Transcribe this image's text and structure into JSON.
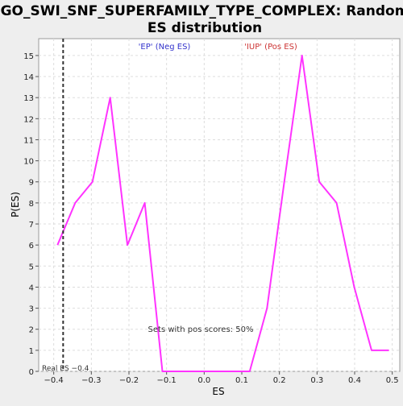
{
  "chart_data": {
    "type": "line",
    "title_lines": [
      "GO_SWI_SNF_SUPERFAMILY_TYPE_COMPLEX: Random",
      "ES distribution"
    ],
    "xlabel": "ES",
    "ylabel": "P(ES)",
    "xlim": [
      -0.44,
      0.52
    ],
    "ylim": [
      0,
      15.8
    ],
    "x_ticks": [
      -0.4,
      -0.3,
      -0.2,
      -0.1,
      0.0,
      0.1,
      0.2,
      0.3,
      0.4,
      0.5
    ],
    "x_tick_labels": [
      "−0.4",
      "−0.3",
      "−0.2",
      "−0.1",
      "0.0",
      "0.1",
      "0.2",
      "0.3",
      "0.4",
      "0.5"
    ],
    "y_ticks": [
      0,
      1,
      2,
      3,
      4,
      5,
      6,
      7,
      8,
      9,
      10,
      11,
      12,
      13,
      14,
      15
    ],
    "y_tick_labels": [
      "0",
      "1",
      "2",
      "3",
      "4",
      "5",
      "6",
      "7",
      "8",
      "9",
      "10",
      "11",
      "12",
      "13",
      "14",
      "15"
    ],
    "grid": true,
    "series": [
      {
        "color": "#ff33ff",
        "x": [
          -0.39,
          -0.343,
          -0.297,
          -0.25,
          -0.204,
          -0.158,
          -0.111,
          -0.065,
          -0.018,
          0.028,
          0.074,
          0.121,
          0.167,
          0.213,
          0.26,
          0.306,
          0.352,
          0.399,
          0.445,
          0.491
        ],
        "y": [
          6,
          8,
          9,
          13,
          6,
          8,
          0,
          0,
          0,
          0,
          0,
          0,
          3,
          9,
          15,
          9,
          8,
          4,
          1,
          1
        ]
      }
    ],
    "real_es_line": {
      "x": -0.375,
      "color": "#333333",
      "style": "dashed"
    },
    "annotations": {
      "neg_label": "'EP' (Neg ES)",
      "neg_color": "#3333cc",
      "pos_label": "'IUP' (Pos ES)",
      "pos_color": "#cc3333",
      "sets_text": "Sets with pos scores: 50%",
      "real_es_text": "Real ES −0.4"
    }
  }
}
